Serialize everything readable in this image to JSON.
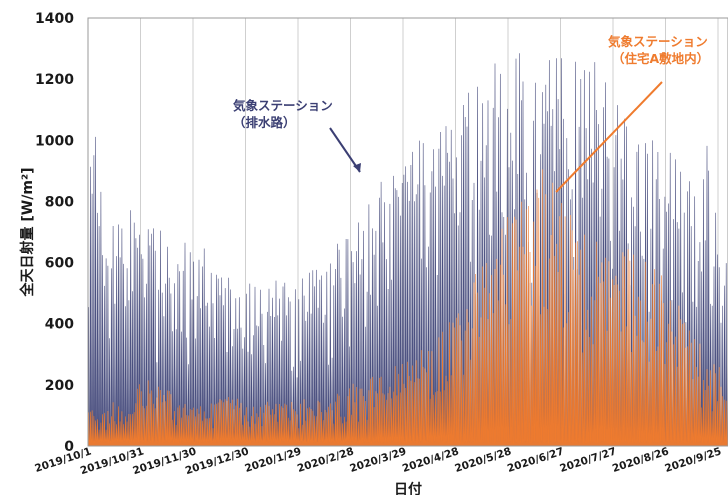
{
  "chart_data": {
    "type": "line",
    "xlabel": "日付",
    "ylabel": "全天日射量 [W/m²]",
    "ylim": [
      0,
      1400
    ],
    "yticks": [
      "0",
      "200",
      "400",
      "600",
      "800",
      "1000",
      "1200",
      "1400"
    ],
    "xticks": [
      "2019/10/1",
      "2019/10/31",
      "2019/11/30",
      "2019/12/30",
      "2020/1/29",
      "2020/2/28",
      "2020/3/29",
      "2020/4/28",
      "2020/5/28",
      "2020/6/27",
      "2020/7/27",
      "2020/8/26",
      "2020/9/25"
    ],
    "grid": true,
    "series": [
      {
        "name": "気象ステーション（排水路）",
        "label_line1": "気象ステーション",
        "label_line2": "（排水路）",
        "color": "#4a4f7f",
        "daily_peak_values": [
          1100,
          960,
          820,
          830,
          750,
          740,
          720,
          700,
          700,
          640,
          630,
          560,
          540,
          560,
          580,
          560,
          600,
          570,
          640,
          660,
          700,
          760,
          830,
          930,
          930,
          1000,
          1010,
          1050,
          1100,
          1180,
          1240,
          1300,
          1280,
          1340,
          1280,
          1300,
          1270,
          1300,
          1370,
          1280,
          1180,
          1150,
          1060,
          1040,
          1000,
          950,
          1000,
          1000,
          960,
          980
        ]
      },
      {
        "name": "気象ステーション（住宅A敷地内）",
        "label_line1": "気象ステーション",
        "label_line2": "（住宅A敷地内）",
        "color": "#ef7b2e",
        "daily_peak_values": [
          140,
          110,
          150,
          100,
          240,
          200,
          190,
          150,
          150,
          130,
          170,
          180,
          130,
          140,
          150,
          140,
          150,
          160,
          150,
          170,
          200,
          220,
          230,
          260,
          280,
          300,
          330,
          380,
          440,
          540,
          600,
          660,
          760,
          860,
          920,
          930,
          880,
          780,
          720,
          700,
          680,
          660,
          640,
          600,
          560,
          480,
          400,
          330,
          280,
          240
        ]
      }
    ]
  }
}
